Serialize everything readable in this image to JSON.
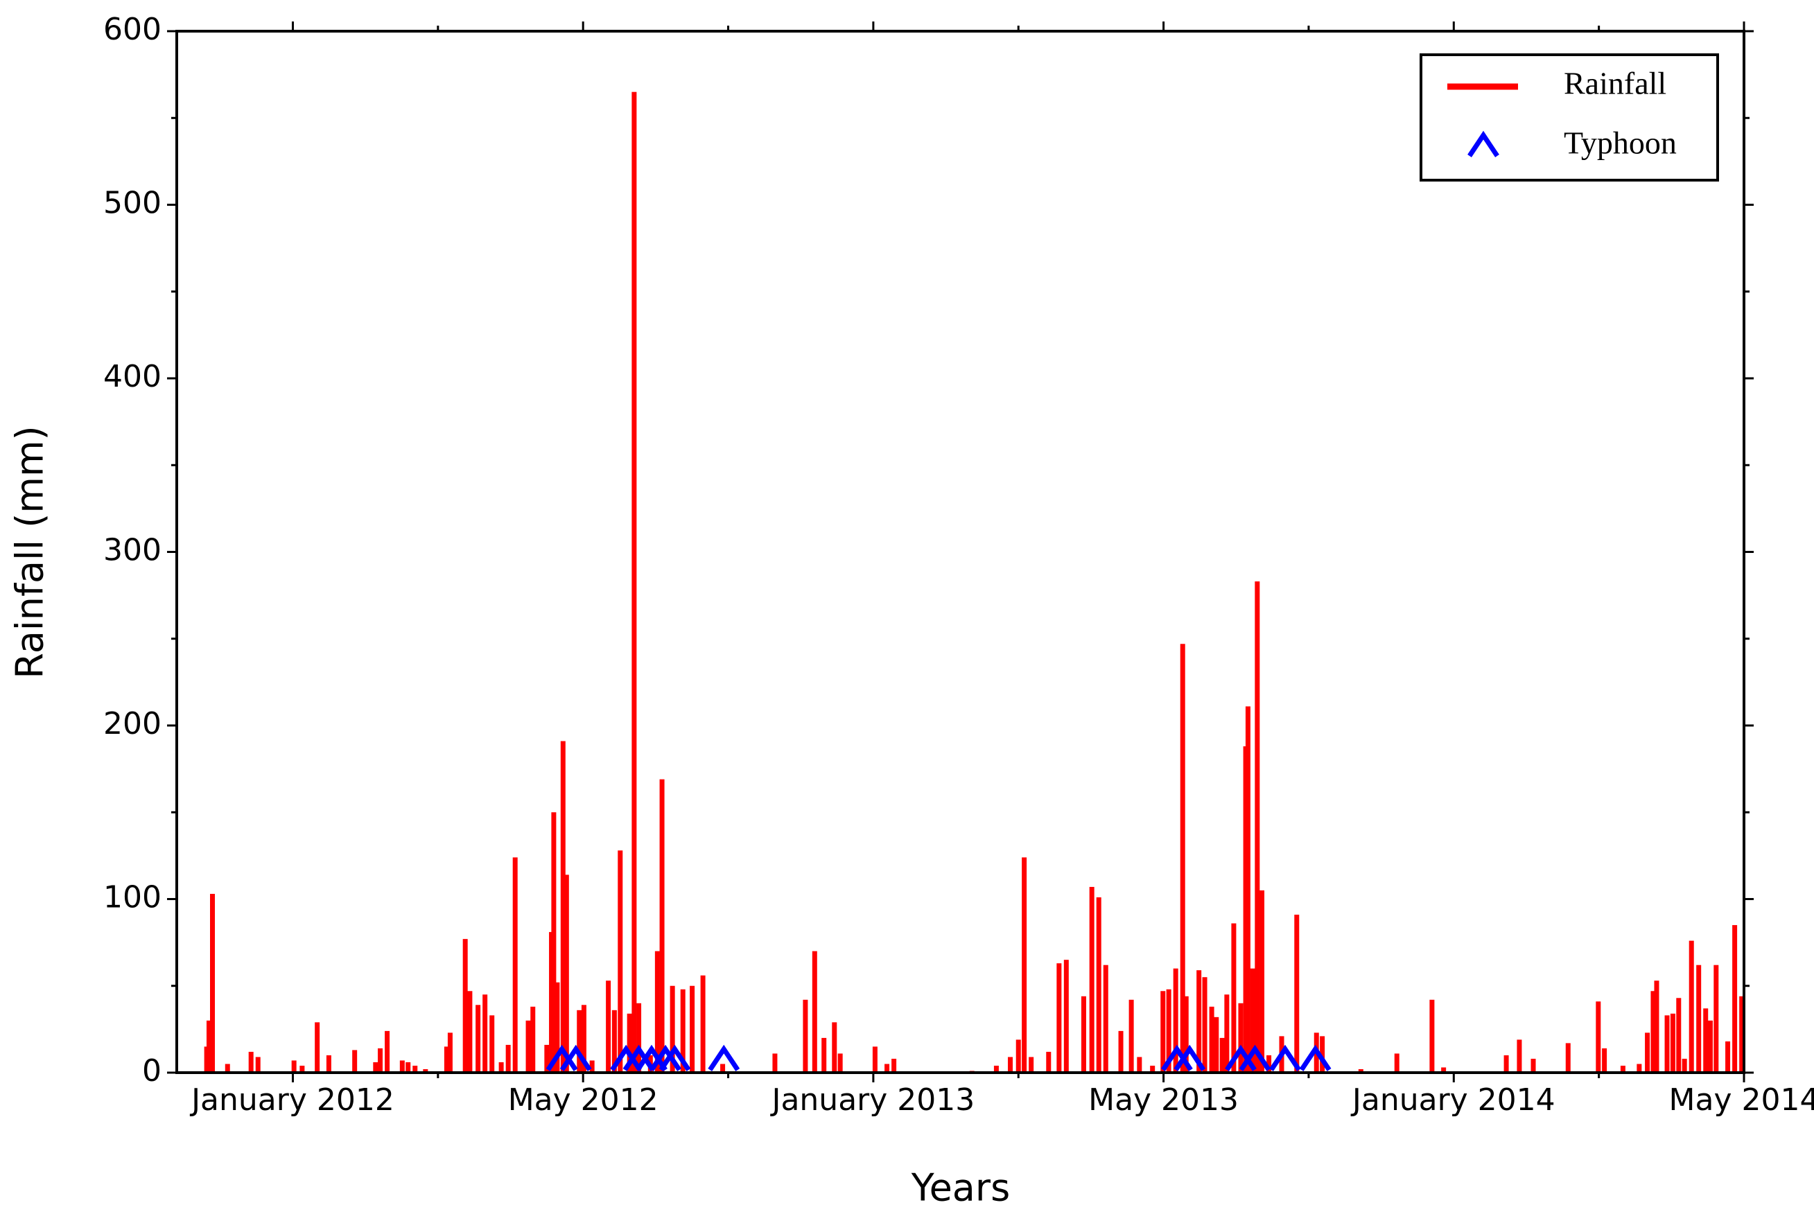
{
  "chart_data": {
    "type": "bar",
    "xlabel": "Years",
    "ylabel": "Rainfall (mm)",
    "xlim": [
      -0.4,
      5.0
    ],
    "ylim": [
      0,
      600
    ],
    "xticks": [
      {
        "value": 0,
        "label": "January 2012"
      },
      {
        "value": 1,
        "label": "May 2012"
      },
      {
        "value": 2,
        "label": "January 2013"
      },
      {
        "value": 3,
        "label": "May 2013"
      },
      {
        "value": 4,
        "label": "January 2014"
      },
      {
        "value": 5,
        "label": "May 2014"
      }
    ],
    "xminorticks": [
      0.5,
      1.5,
      2.5,
      3.5,
      4.5
    ],
    "yticks": [
      0,
      100,
      200,
      300,
      400,
      500,
      600
    ],
    "yminorticks": [
      50,
      150,
      250,
      350,
      450,
      550
    ],
    "legend": "upper right",
    "series": [
      {
        "name": "Rainfall",
        "type": "bar",
        "color": "#ff0000",
        "x": [
          -0.297,
          -0.289,
          -0.277,
          -0.225,
          -0.144,
          -0.12,
          0.004,
          0.032,
          0.084,
          0.124,
          0.213,
          0.285,
          0.301,
          0.325,
          0.377,
          0.397,
          0.421,
          0.457,
          0.53,
          0.542,
          0.594,
          0.61,
          0.638,
          0.662,
          0.686,
          0.718,
          0.742,
          0.766,
          0.811,
          0.827,
          0.875,
          0.891,
          0.899,
          0.911,
          0.931,
          0.943,
          0.987,
          1.003,
          1.031,
          1.087,
          1.108,
          1.128,
          1.16,
          1.176,
          1.192,
          1.232,
          1.256,
          1.272,
          1.308,
          1.344,
          1.376,
          1.413,
          1.481,
          1.661,
          1.766,
          1.798,
          1.83,
          1.866,
          1.886,
          2.006,
          2.047,
          2.071,
          2.34,
          2.424,
          2.472,
          2.5,
          2.52,
          2.544,
          2.604,
          2.64,
          2.665,
          2.725,
          2.753,
          2.777,
          2.801,
          2.853,
          2.889,
          2.917,
          2.962,
          2.998,
          3.018,
          3.042,
          3.066,
          3.078,
          3.122,
          3.142,
          3.166,
          3.182,
          3.202,
          3.218,
          3.242,
          3.266,
          3.283,
          3.291,
          3.307,
          3.323,
          3.339,
          3.363,
          3.407,
          3.459,
          3.527,
          3.547,
          3.68,
          3.804,
          3.925,
          3.965,
          4.181,
          4.226,
          4.274,
          4.394,
          4.498,
          4.519,
          4.583,
          4.639,
          4.667,
          4.687,
          4.699,
          4.735,
          4.755,
          4.775,
          4.795,
          4.819,
          4.844,
          4.868,
          4.884,
          4.904,
          4.944,
          4.968,
          4.992
        ],
        "values": [
          15,
          30,
          103,
          5,
          12,
          9,
          7,
          4,
          29,
          10,
          13,
          6,
          14,
          24,
          7,
          6,
          4,
          2,
          15,
          23,
          77,
          47,
          39,
          45,
          33,
          6,
          16,
          124,
          30,
          38,
          16,
          81,
          150,
          52,
          191,
          114,
          36,
          39,
          7,
          53,
          36,
          128,
          34,
          565,
          40,
          10,
          70,
          169,
          50,
          48,
          50,
          56,
          5,
          11,
          42,
          70,
          20,
          29,
          11,
          15,
          5,
          8,
          1,
          4,
          9,
          19,
          124,
          9,
          12,
          63,
          65,
          44,
          107,
          101,
          62,
          24,
          42,
          9,
          4,
          47,
          48,
          60,
          247,
          44,
          59,
          55,
          38,
          32,
          20,
          45,
          86,
          40,
          188,
          211,
          60,
          283,
          105,
          10,
          21,
          91,
          23,
          21,
          2,
          11,
          42,
          3,
          10,
          19,
          8,
          17,
          41,
          14,
          4,
          5,
          23,
          47,
          53,
          33,
          34,
          43,
          8,
          76,
          62,
          37,
          30,
          62,
          18,
          85,
          44
        ]
      },
      {
        "name": "Typhoon",
        "type": "scatter",
        "marker": "triangle",
        "color": "#0000ff",
        "x": [
          0.927,
          0.975,
          1.148,
          1.192,
          1.236,
          1.284,
          1.316,
          1.485,
          3.046,
          3.09,
          3.266,
          3.315,
          3.419,
          3.523
        ],
        "values": [
          0,
          0,
          0,
          0,
          0,
          0,
          0,
          0,
          0,
          0,
          0,
          0,
          0,
          0
        ]
      }
    ]
  }
}
